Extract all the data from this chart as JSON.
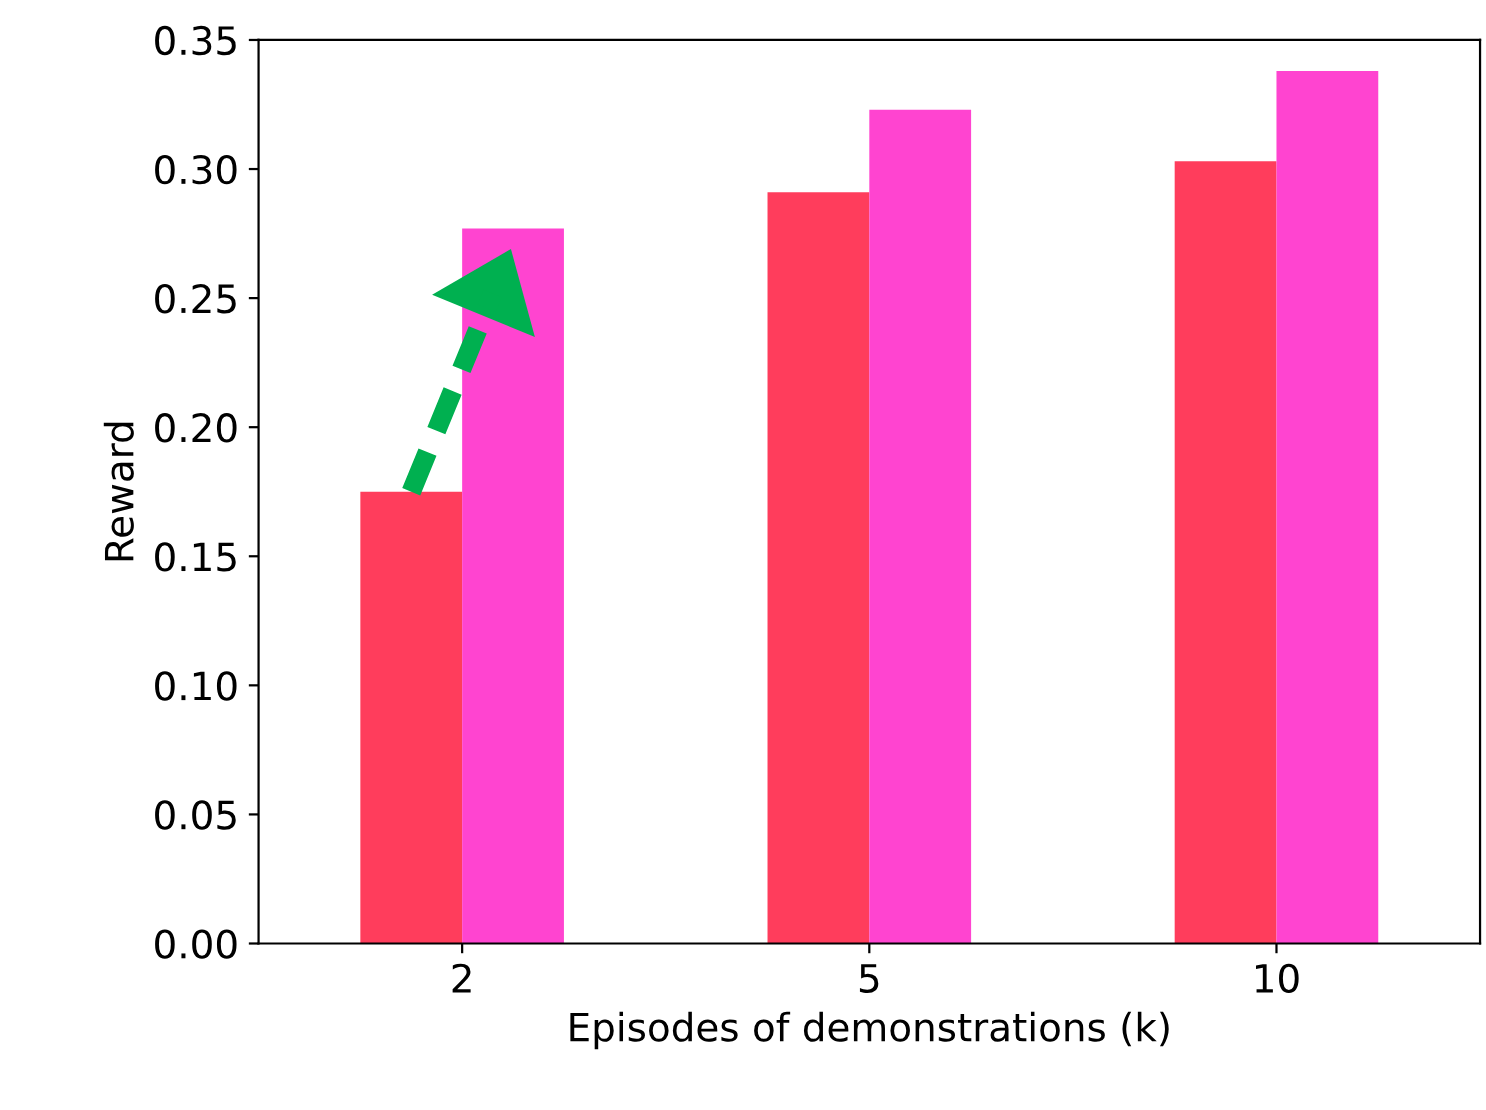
{
  "chart_data": {
    "type": "bar",
    "xlabel": "Episodes of demonstrations (k)",
    "ylabel": "Reward",
    "categories": [
      "2",
      "5",
      "10"
    ],
    "series": [
      {
        "color": "#ff3d5c",
        "values": [
          0.175,
          0.291,
          0.303
        ]
      },
      {
        "color": "#ff44d0",
        "values": [
          0.277,
          0.323,
          0.338
        ]
      }
    ],
    "ylim": [
      0,
      0.35
    ],
    "yticks": [
      {
        "value": 0,
        "label": "0.00"
      },
      0.05,
      {
        "value": 0.1,
        "label": "0.10"
      },
      0.15,
      {
        "value": 0.2,
        "label": "0.20"
      },
      0.25,
      {
        "value": 0.3,
        "label": "0.30"
      },
      0.35
    ],
    "grid": false,
    "legend": false
  }
}
